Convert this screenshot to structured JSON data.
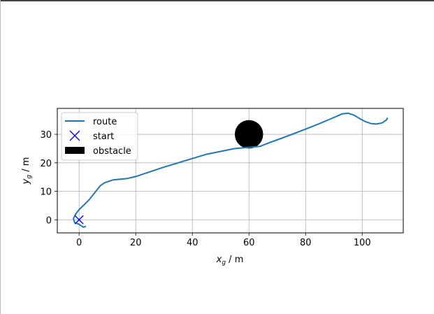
{
  "chart_data": {
    "type": "line",
    "title": "",
    "xlabel_main": "x",
    "xlabel_sub": "g",
    "xlabel_unit": " / m",
    "ylabel_main": "y",
    "ylabel_sub": "g",
    "ylabel_unit": " / m",
    "xlim": [
      -7.7,
      114.5
    ],
    "ylim": [
      -4.6,
      39.1
    ],
    "xticks": [
      0,
      20,
      40,
      60,
      80,
      100
    ],
    "yticks": [
      0,
      10,
      20,
      30
    ],
    "grid": true,
    "legend_position": "upper-left",
    "legend": [
      "route",
      "start",
      "obstacle"
    ],
    "series": [
      {
        "name": "route",
        "color": "#1f77b4",
        "points": [
          [
            2.4,
            -2.3
          ],
          [
            1.5,
            -2.6
          ],
          [
            0.0,
            -1.6
          ],
          [
            -1.6,
            -1.0
          ],
          [
            -2.0,
            0.5
          ],
          [
            -1.2,
            2.0
          ],
          [
            0.0,
            3.6
          ],
          [
            1.5,
            5.0
          ],
          [
            3.5,
            7.0
          ],
          [
            5.5,
            9.5
          ],
          [
            7.5,
            12.0
          ],
          [
            9.0,
            13.0
          ],
          [
            12.0,
            14.0
          ],
          [
            17.0,
            14.5
          ],
          [
            20.0,
            15.2
          ],
          [
            30.0,
            18.5
          ],
          [
            40.0,
            21.5
          ],
          [
            45.0,
            23.0
          ],
          [
            50.0,
            24.0
          ],
          [
            55.0,
            25.0
          ],
          [
            60.0,
            25.4
          ],
          [
            64.0,
            25.8
          ],
          [
            67.0,
            27.0
          ],
          [
            72.0,
            28.8
          ],
          [
            80.0,
            31.8
          ],
          [
            85.0,
            33.8
          ],
          [
            90.0,
            35.9
          ],
          [
            93.0,
            37.2
          ],
          [
            95.0,
            37.4
          ],
          [
            97.0,
            36.8
          ],
          [
            99.0,
            35.6
          ],
          [
            101.0,
            34.5
          ],
          [
            103.0,
            33.8
          ],
          [
            105.0,
            33.6
          ],
          [
            107.0,
            34.0
          ],
          [
            108.5,
            35.0
          ],
          [
            109.0,
            35.8
          ]
        ]
      },
      {
        "name": "start",
        "color": "#0000ff",
        "marker": "x",
        "points": [
          [
            0,
            0
          ]
        ]
      }
    ],
    "obstacle": {
      "name": "obstacle",
      "color": "#000000",
      "center": [
        60,
        30
      ],
      "radius": 5
    }
  }
}
